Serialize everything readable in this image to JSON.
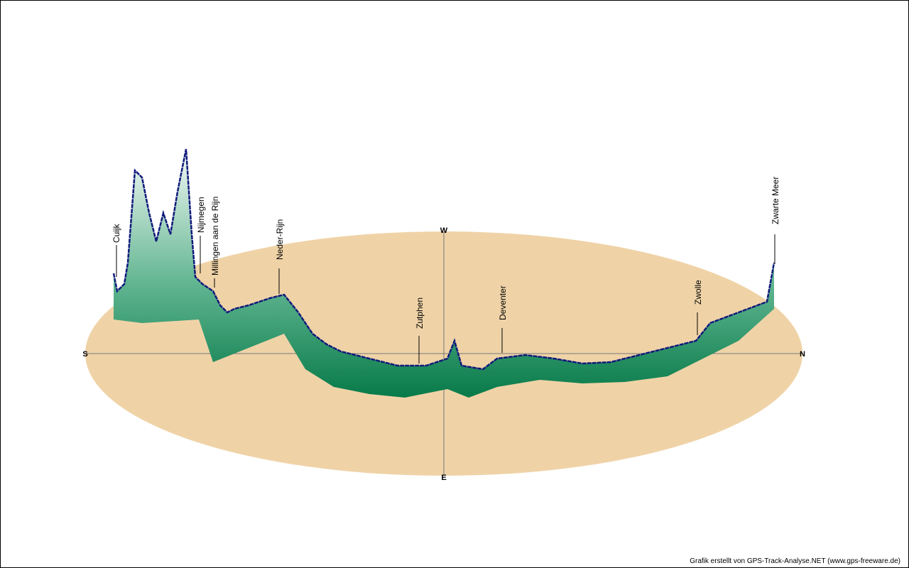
{
  "compass": {
    "south": "S",
    "north": "N",
    "west": "W",
    "east": "E"
  },
  "places": [
    "Cuijk",
    "Nijmegen",
    "Millingen aan de Rijn",
    "Neder-Rijn",
    "Zutphen",
    "Deventer",
    "Zwolle",
    "Zwarte Meer"
  ],
  "credit": "Grafik erstellt von GPS-Track-Analyse.NET (www.gps-freeware.de)"
}
